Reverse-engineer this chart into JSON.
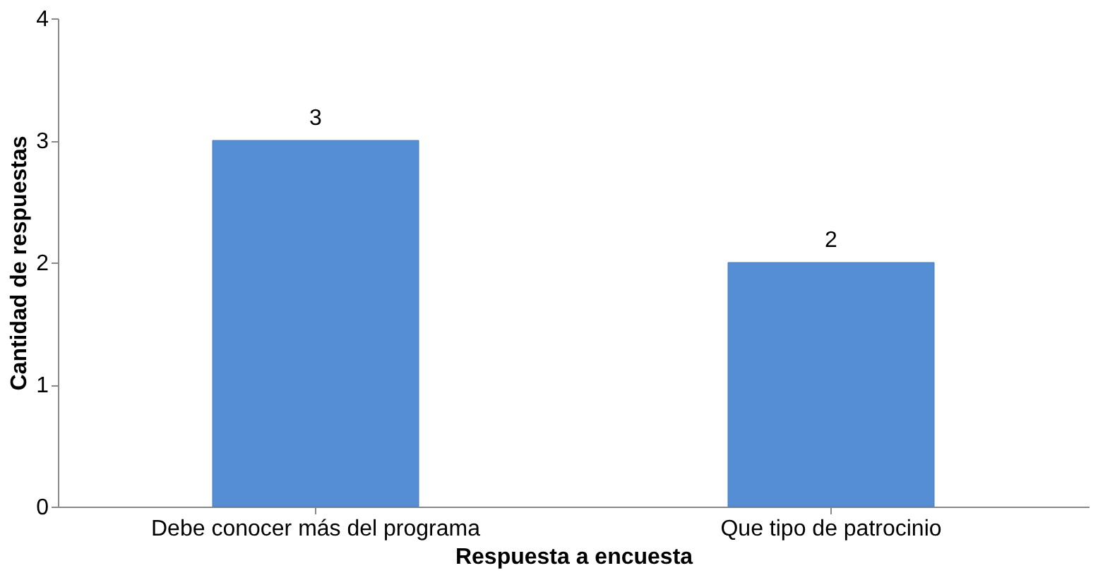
{
  "chart_data": {
    "type": "bar",
    "xlabel": "Respuesta a encuesta",
    "ylabel": "Cantidad de respuestas",
    "categories": [
      "Debe conocer más del programa",
      "Que tipo de patrocinio"
    ],
    "values": [
      3,
      2
    ],
    "color": "#558ed5",
    "ylim": [
      0,
      4
    ],
    "yticks": [
      0,
      1,
      2,
      3,
      4
    ],
    "grid": false,
    "data_labels": true
  }
}
